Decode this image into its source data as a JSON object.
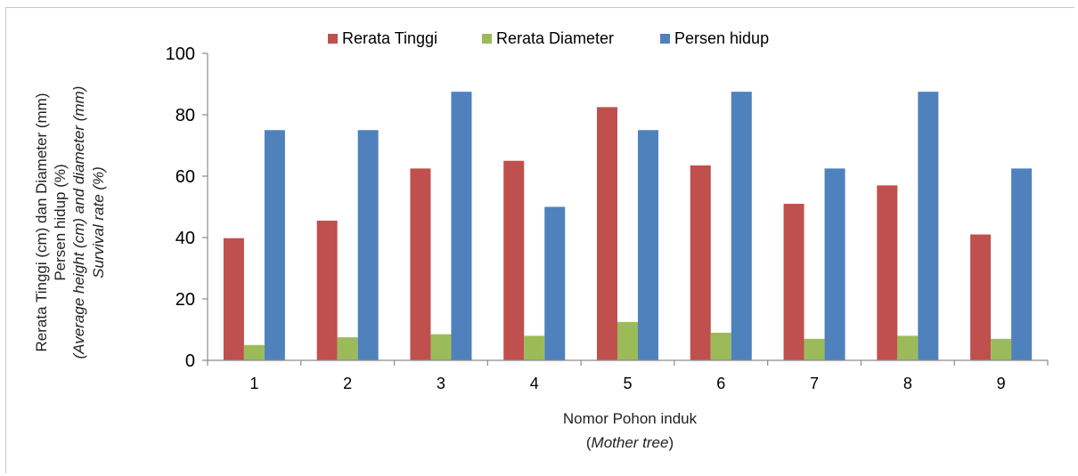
{
  "chart_data": {
    "type": "bar",
    "categories": [
      "1",
      "2",
      "3",
      "4",
      "5",
      "6",
      "7",
      "8",
      "9"
    ],
    "series": [
      {
        "name": "Rerata Tinggi",
        "color": "#c0504d",
        "values": [
          39.8,
          45.5,
          62.5,
          65.0,
          82.5,
          63.5,
          51.0,
          57.0,
          41.0
        ]
      },
      {
        "name": "Rerata Diameter",
        "color": "#9bbb59",
        "values": [
          5.0,
          7.5,
          8.5,
          8.0,
          12.5,
          9.0,
          7.0,
          8.0,
          7.0
        ]
      },
      {
        "name": "Persen hidup",
        "color": "#4f81bd",
        "values": [
          75,
          75,
          87.5,
          50,
          75,
          87.5,
          62.5,
          87.5,
          62.5
        ]
      }
    ],
    "yticks": [
      0,
      20,
      40,
      60,
      80,
      100
    ],
    "ylim": [
      0,
      100
    ],
    "xlabel_line1": "Nomor Pohon induk",
    "xlabel_line2_open": "(",
    "xlabel_line2_italic": "Mother tree",
    "xlabel_line2_close": ")",
    "ylabel_lines": [
      {
        "text": "Rerata Tinggi (cm) dan Diameter (mm)",
        "italic": false
      },
      {
        "text": "Persen hidup (%)",
        "italic": false
      },
      {
        "text": "(Average height (cm) and diameter (mm)",
        "italic": true
      },
      {
        "text": "Survival rate (%)",
        "italic": true
      }
    ],
    "legend_position": "top",
    "grid": false
  }
}
